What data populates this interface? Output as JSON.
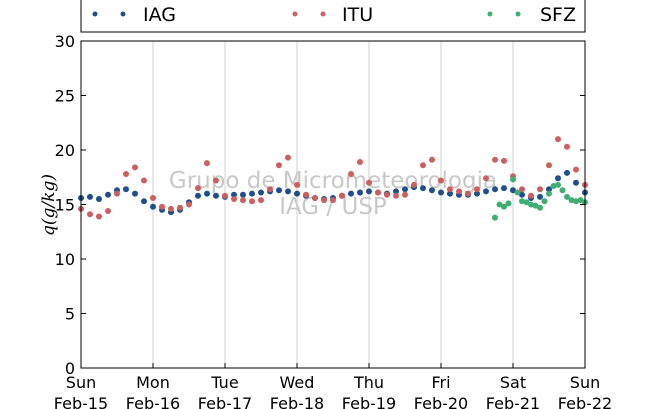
{
  "chart_data": {
    "type": "scatter",
    "ylabel": "q(g/kg)",
    "ylim": [
      0,
      30
    ],
    "yticks": [
      0,
      5,
      10,
      15,
      20,
      25,
      30
    ],
    "xlim": [
      "2015-02-15",
      "2015-02-22"
    ],
    "x_unit": "days",
    "xticks": [
      {
        "day": "Sun",
        "date": "Feb-15"
      },
      {
        "day": "Mon",
        "date": "Feb-16"
      },
      {
        "day": "Tue",
        "date": "Feb-17"
      },
      {
        "day": "Wed",
        "date": "Feb-18"
      },
      {
        "day": "Thu",
        "date": "Feb-19"
      },
      {
        "day": "Fri",
        "date": "Feb-20"
      },
      {
        "day": "Sat",
        "date": "Feb-21"
      },
      {
        "day": "Sun",
        "date": "Feb-22"
      }
    ],
    "grid": "vertical",
    "legend_position": "top",
    "watermark": [
      "Grupo de Micrometeorologia",
      "IAG / USP"
    ],
    "series": [
      {
        "name": "IAG",
        "color": "#1f4e8c",
        "x": [
          "2015-02-15 00:00",
          "2015-02-15 03:00",
          "2015-02-15 06:00",
          "2015-02-15 09:00",
          "2015-02-15 12:00",
          "2015-02-15 15:00",
          "2015-02-15 18:00",
          "2015-02-15 21:00",
          "2015-02-16 00:00",
          "2015-02-16 03:00",
          "2015-02-16 06:00",
          "2015-02-16 09:00",
          "2015-02-16 12:00",
          "2015-02-16 15:00",
          "2015-02-16 18:00",
          "2015-02-16 21:00",
          "2015-02-17 00:00",
          "2015-02-17 03:00",
          "2015-02-17 06:00",
          "2015-02-17 09:00",
          "2015-02-17 12:00",
          "2015-02-17 15:00",
          "2015-02-17 18:00",
          "2015-02-17 21:00",
          "2015-02-18 00:00",
          "2015-02-18 03:00",
          "2015-02-18 06:00",
          "2015-02-18 09:00",
          "2015-02-18 12:00",
          "2015-02-18 15:00",
          "2015-02-18 18:00",
          "2015-02-18 21:00",
          "2015-02-19 00:00",
          "2015-02-19 03:00",
          "2015-02-19 06:00",
          "2015-02-19 09:00",
          "2015-02-19 12:00",
          "2015-02-19 15:00",
          "2015-02-19 18:00",
          "2015-02-19 21:00",
          "2015-02-20 00:00",
          "2015-02-20 03:00",
          "2015-02-20 06:00",
          "2015-02-20 09:00",
          "2015-02-20 12:00",
          "2015-02-20 15:00",
          "2015-02-20 18:00",
          "2015-02-20 21:00",
          "2015-02-21 00:00",
          "2015-02-21 03:00",
          "2015-02-21 06:00",
          "2015-02-21 09:00",
          "2015-02-21 12:00",
          "2015-02-21 15:00",
          "2015-02-21 18:00",
          "2015-02-21 21:00",
          "2015-02-22 00:00"
        ],
        "values": [
          15.6,
          15.7,
          15.5,
          15.9,
          16.3,
          16.4,
          16.0,
          15.3,
          14.8,
          14.5,
          14.3,
          14.5,
          15.2,
          15.8,
          16.0,
          15.8,
          15.7,
          15.9,
          15.9,
          16.0,
          16.1,
          16.2,
          16.3,
          16.2,
          16.0,
          15.8,
          15.6,
          15.5,
          15.6,
          15.8,
          16.0,
          16.1,
          16.2,
          16.1,
          16.0,
          16.2,
          16.4,
          16.6,
          16.5,
          16.3,
          16.1,
          16.0,
          15.9,
          15.9,
          16.0,
          16.2,
          16.4,
          16.5,
          16.3,
          15.9,
          15.6,
          15.7,
          16.4,
          17.4,
          17.9,
          17.0,
          16.1
        ]
      },
      {
        "name": "ITU",
        "color": "#cc5f5f",
        "x": [
          "2015-02-15 00:00",
          "2015-02-15 03:00",
          "2015-02-15 06:00",
          "2015-02-15 09:00",
          "2015-02-15 12:00",
          "2015-02-15 15:00",
          "2015-02-15 18:00",
          "2015-02-15 21:00",
          "2015-02-16 00:00",
          "2015-02-16 03:00",
          "2015-02-16 06:00",
          "2015-02-16 09:00",
          "2015-02-16 12:00",
          "2015-02-16 15:00",
          "2015-02-16 18:00",
          "2015-02-16 21:00",
          "2015-02-17 00:00",
          "2015-02-17 03:00",
          "2015-02-17 06:00",
          "2015-02-17 09:00",
          "2015-02-17 12:00",
          "2015-02-17 15:00",
          "2015-02-17 18:00",
          "2015-02-17 21:00",
          "2015-02-18 00:00",
          "2015-02-18 03:00",
          "2015-02-18 06:00",
          "2015-02-18 09:00",
          "2015-02-18 12:00",
          "2015-02-18 15:00",
          "2015-02-18 18:00",
          "2015-02-18 21:00",
          "2015-02-19 00:00",
          "2015-02-19 03:00",
          "2015-02-19 06:00",
          "2015-02-19 09:00",
          "2015-02-19 12:00",
          "2015-02-19 15:00",
          "2015-02-19 18:00",
          "2015-02-19 21:00",
          "2015-02-20 00:00",
          "2015-02-20 03:00",
          "2015-02-20 06:00",
          "2015-02-20 09:00",
          "2015-02-20 12:00",
          "2015-02-20 15:00",
          "2015-02-20 18:00",
          "2015-02-20 21:00",
          "2015-02-21 00:00",
          "2015-02-21 03:00",
          "2015-02-21 06:00",
          "2015-02-21 09:00",
          "2015-02-21 12:00",
          "2015-02-21 15:00",
          "2015-02-21 18:00",
          "2015-02-21 21:00",
          "2015-02-22 00:00"
        ],
        "values": [
          14.6,
          14.1,
          13.9,
          14.4,
          16.0,
          17.8,
          18.4,
          17.2,
          15.6,
          14.8,
          14.6,
          14.7,
          15.0,
          16.5,
          18.8,
          17.2,
          15.8,
          15.5,
          15.4,
          15.3,
          15.4,
          16.4,
          18.6,
          19.3,
          16.8,
          15.9,
          15.6,
          15.4,
          15.4,
          15.8,
          17.8,
          18.9,
          17.0,
          16.1,
          15.9,
          15.8,
          15.9,
          16.8,
          18.6,
          19.1,
          17.2,
          16.4,
          16.2,
          16.0,
          16.4,
          17.4,
          19.1,
          19.0,
          17.6,
          16.4,
          15.8,
          16.4,
          18.6,
          21.0,
          20.3,
          18.2,
          16.8
        ]
      },
      {
        "name": "SFZ",
        "color": "#3fae72",
        "x": [
          "2015-02-20 18:00",
          "2015-02-20 19:30",
          "2015-02-20 21:00",
          "2015-02-20 22:30",
          "2015-02-21 00:00",
          "2015-02-21 01:30",
          "2015-02-21 03:00",
          "2015-02-21 04:30",
          "2015-02-21 06:00",
          "2015-02-21 07:30",
          "2015-02-21 09:00",
          "2015-02-21 10:30",
          "2015-02-21 12:00",
          "2015-02-21 13:30",
          "2015-02-21 15:00",
          "2015-02-21 16:30",
          "2015-02-21 18:00",
          "2015-02-21 19:30",
          "2015-02-21 21:00",
          "2015-02-21 22:30",
          "2015-02-22 00:00"
        ],
        "values": [
          13.8,
          15.0,
          14.8,
          15.1,
          17.3,
          16.1,
          15.3,
          15.2,
          15.0,
          14.9,
          14.7,
          15.3,
          16.0,
          16.7,
          16.8,
          16.3,
          15.7,
          15.4,
          15.3,
          15.4,
          15.2
        ]
      }
    ]
  }
}
